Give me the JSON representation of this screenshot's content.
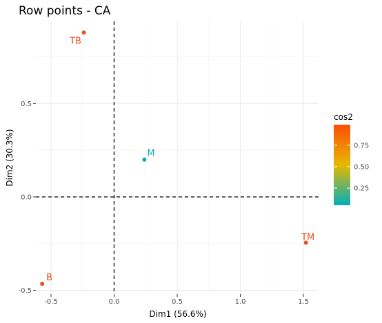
{
  "chart_data": {
    "type": "scatter",
    "title": "Row points - CA",
    "xlabel": "Dim1 (56.6%)",
    "ylabel": "Dim2 (30.3%)",
    "xlim": [
      -0.62,
      1.62
    ],
    "ylim": [
      -0.52,
      0.94
    ],
    "xticks": [
      -0.5,
      0.0,
      0.5,
      1.0,
      1.5
    ],
    "xtick_labels": [
      "-0.5",
      "0.0",
      "0.5",
      "1.0",
      "1.5"
    ],
    "yticks": [
      -0.5,
      0.0,
      0.5
    ],
    "ytick_labels": [
      "-0.5",
      "0.0",
      "0.5"
    ],
    "grid": true,
    "reference_lines": {
      "x": 0,
      "y": 0,
      "style": "dashed"
    },
    "points": [
      {
        "label": "TB",
        "x": -0.24,
        "y": 0.88,
        "cos2": 0.97,
        "color": "#e8501f"
      },
      {
        "label": "M",
        "x": 0.24,
        "y": 0.2,
        "cos2": 0.05,
        "color": "#12a8b4"
      },
      {
        "label": "TM",
        "x": 1.52,
        "y": -0.245,
        "cos2": 0.97,
        "color": "#e8501f"
      },
      {
        "label": "B",
        "x": -0.57,
        "y": -0.465,
        "cos2": 0.93,
        "color": "#e8501f"
      }
    ],
    "legend": {
      "title": "cos2",
      "placement": "right",
      "gradient": [
        "#00AFBB",
        "#E7B800",
        "#FC4E07"
      ],
      "range": [
        0.05,
        0.99
      ],
      "ticks": [
        0.25,
        0.5,
        0.75
      ],
      "tick_labels": [
        "0.25",
        "0.50",
        "0.75"
      ]
    }
  }
}
